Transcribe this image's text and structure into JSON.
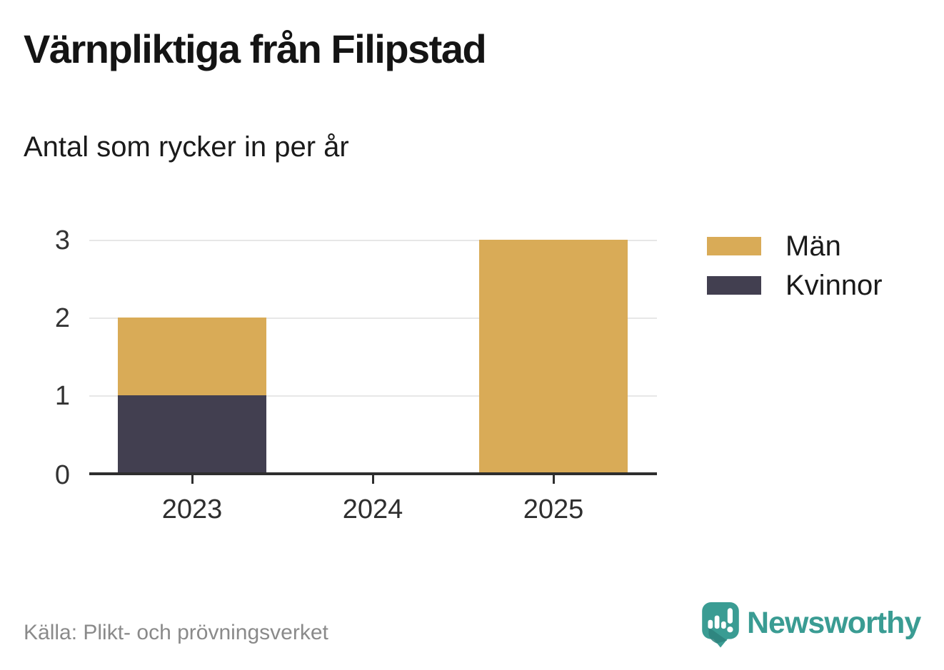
{
  "header": {
    "title": "Värnpliktiga från Filipstad",
    "subtitle": "Antal som rycker in per år"
  },
  "chart_data": {
    "type": "bar",
    "stacked": true,
    "title": "Värnpliktiga från Filipstad",
    "subtitle": "Antal som rycker in per år",
    "categories": [
      "2023",
      "2024",
      "2025"
    ],
    "series": [
      {
        "name": "Män",
        "color": "#d9ab57",
        "values": [
          1,
          0,
          3
        ]
      },
      {
        "name": "Kvinnor",
        "color": "#423f50",
        "values": [
          1,
          0,
          0
        ]
      }
    ],
    "stack_order_bottom_to_top": [
      "Kvinnor",
      "Män"
    ],
    "yticks": [
      0,
      1,
      2,
      3
    ],
    "ylim": [
      0,
      3
    ],
    "xlabel": "",
    "ylabel": "",
    "grid": true,
    "legend_position": "right"
  },
  "footer": {
    "source": "Källa: Plikt- och prövningsverket",
    "brand": "Newsworthy"
  },
  "colors": {
    "men": "#d9ab57",
    "women": "#423f50",
    "axis": "#2e2e2e",
    "grid": "#e7e7e7",
    "brand_teal": "#3a9c93",
    "brand_teal_dark": "#2e837c",
    "text_dark": "#1a1a1a",
    "text_muted": "#8a8a8a"
  }
}
